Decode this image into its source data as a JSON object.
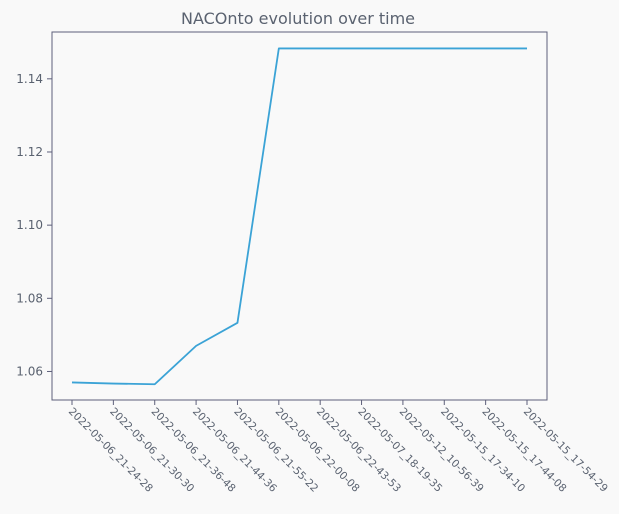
{
  "chart_data": {
    "type": "line",
    "title": "NACOnto evolution over time",
    "xlabel": "",
    "ylabel": "",
    "x": [
      "2022-05-06_21-24-28",
      "2022-05-06_21-30-30",
      "2022-05-06_21-36-48",
      "2022-05-06_21-44-36",
      "2022-05-06_21-55-22",
      "2022-05-06_22-00-08",
      "2022-05-06_22-43-53",
      "2022-05-07_18-19-35",
      "2022-05-12_10-56-39",
      "2022-05-15_17-34-10",
      "2022-05-15_17-44-08",
      "2022-05-15_17-54-29"
    ],
    "series": [
      {
        "values": [
          1.057,
          1.0567,
          1.0565,
          1.067,
          1.0733,
          1.1483,
          1.1483,
          1.1483,
          1.1483,
          1.1483,
          1.1483,
          1.1483
        ],
        "color": "#3ba3d6"
      }
    ],
    "ylim": [
      1.0522,
      1.1528
    ],
    "yticks": [
      "1.06",
      "1.08",
      "1.10",
      "1.12",
      "1.14"
    ],
    "grid": false,
    "legend": "none",
    "colors": {
      "background": "#f9f9f9",
      "axes": "#5d5f7a",
      "text": "#5a6270",
      "line": "#3ba3d6"
    }
  }
}
